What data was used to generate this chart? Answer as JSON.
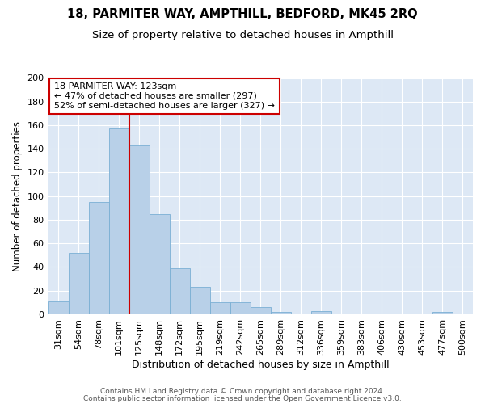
{
  "title1": "18, PARMITER WAY, AMPTHILL, BEDFORD, MK45 2RQ",
  "title2": "Size of property relative to detached houses in Ampthill",
  "xlabel": "Distribution of detached houses by size in Ampthill",
  "ylabel": "Number of detached properties",
  "bin_labels": [
    "31sqm",
    "54sqm",
    "78sqm",
    "101sqm",
    "125sqm",
    "148sqm",
    "172sqm",
    "195sqm",
    "219sqm",
    "242sqm",
    "265sqm",
    "289sqm",
    "312sqm",
    "336sqm",
    "359sqm",
    "383sqm",
    "406sqm",
    "430sqm",
    "453sqm",
    "477sqm",
    "500sqm"
  ],
  "bar_heights": [
    11,
    52,
    95,
    157,
    143,
    85,
    39,
    23,
    10,
    10,
    6,
    2,
    0,
    3,
    0,
    0,
    0,
    0,
    0,
    2,
    0
  ],
  "bar_color": "#b8d0e8",
  "bar_edgecolor": "#7aafd4",
  "vline_x": 4.0,
  "vline_color": "#cc0000",
  "annotation_text": "18 PARMITER WAY: 123sqm\n← 47% of detached houses are smaller (297)\n52% of semi-detached houses are larger (327) →",
  "annotation_box_facecolor": "#ffffff",
  "annotation_box_edgecolor": "#cc0000",
  "ylim": [
    0,
    200
  ],
  "yticks": [
    0,
    20,
    40,
    60,
    80,
    100,
    120,
    140,
    160,
    180,
    200
  ],
  "footer1": "Contains HM Land Registry data © Crown copyright and database right 2024.",
  "footer2": "Contains public sector information licensed under the Open Government Licence v3.0.",
  "plot_bg_color": "#dde8f5",
  "title1_fontsize": 10.5,
  "title2_fontsize": 9.5,
  "xlabel_fontsize": 9,
  "ylabel_fontsize": 8.5,
  "tick_fontsize": 8,
  "annot_fontsize": 8,
  "footer_fontsize": 6.5
}
